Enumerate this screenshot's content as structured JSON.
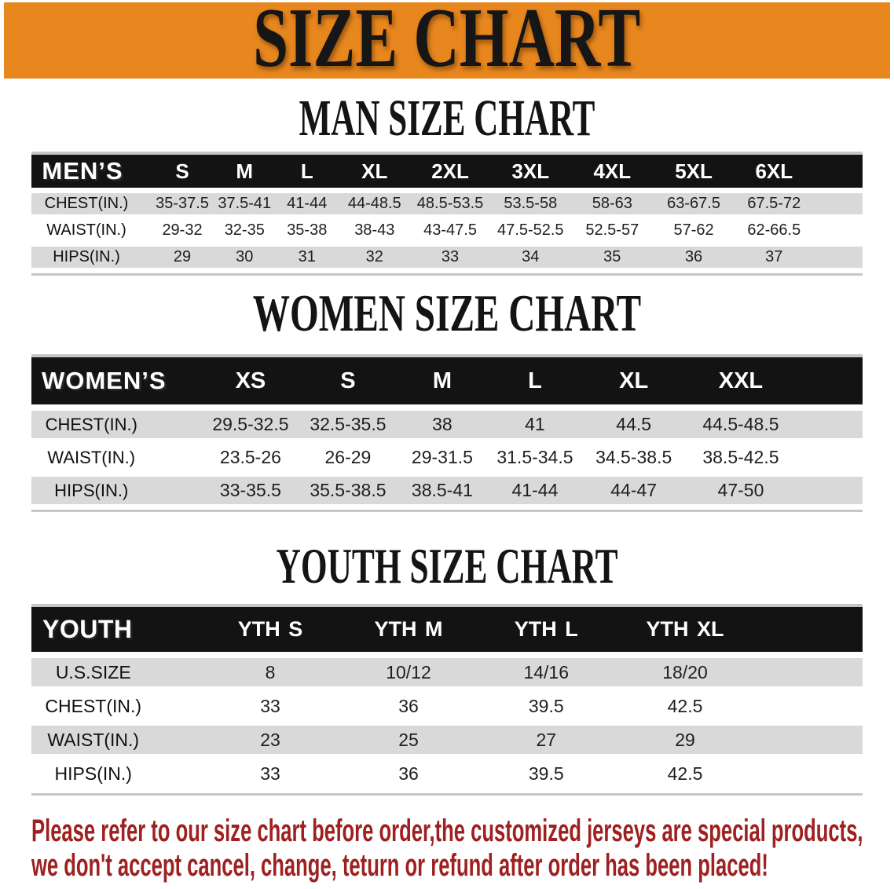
{
  "banner": {
    "title": "SIZE CHART",
    "bg_color": "#E8871E"
  },
  "sections": [
    {
      "id": "men",
      "heading": "MAN SIZE CHART",
      "table": {
        "header": [
          "MEN’S",
          "S",
          "M",
          "L",
          "XL",
          "2XL",
          "3XL",
          "4XL",
          "5XL",
          "6XL"
        ],
        "rows": [
          {
            "label": "CHEST(IN.)",
            "values": [
              "35-37.5",
              "37.5-41",
              "41-44",
              "44-48.5",
              "48.5-53.5",
              "53.5-58",
              "58-63",
              "63-67.5",
              "67.5-72"
            ]
          },
          {
            "label": "WAIST(IN.)",
            "values": [
              "29-32",
              "32-35",
              "35-38",
              "38-43",
              "43-47.5",
              "47.5-52.5",
              "52.5-57",
              "57-62",
              "62-66.5"
            ]
          },
          {
            "label": "HIPS(IN.)",
            "values": [
              "29",
              "30",
              "31",
              "32",
              "33",
              "34",
              "35",
              "36",
              "37"
            ]
          }
        ]
      }
    },
    {
      "id": "women",
      "heading": "WOMEN SIZE CHART",
      "table": {
        "header": [
          "WOMEN’S",
          "XS",
          "S",
          "M",
          "L",
          "XL",
          "XXL"
        ],
        "rows": [
          {
            "label": "CHEST(IN.)",
            "values": [
              "29.5-32.5",
              "32.5-35.5",
              "38",
              "41",
              "44.5",
              "44.5-48.5"
            ]
          },
          {
            "label": "WAIST(IN.)",
            "values": [
              "23.5-26",
              "26-29",
              "29-31.5",
              "31.5-34.5",
              "34.5-38.5",
              "38.5-42.5"
            ]
          },
          {
            "label": "HIPS(IN.)",
            "values": [
              "33-35.5",
              "35.5-38.5",
              "38.5-41",
              "41-44",
              "44-47",
              "47-50"
            ]
          }
        ]
      }
    },
    {
      "id": "youth",
      "heading": "YOUTH SIZE CHART",
      "table": {
        "header": [
          "YOUTH",
          "YTH S",
          "YTH M",
          "YTH L",
          "YTH XL"
        ],
        "rows": [
          {
            "label": "U.S.SIZE",
            "values": [
              "8",
              "10/12",
              "14/16",
              "18/20"
            ]
          },
          {
            "label": "CHEST(IN.)",
            "values": [
              "33",
              "36",
              "39.5",
              "42.5"
            ]
          },
          {
            "label": "WAIST(IN.)",
            "values": [
              "23",
              "25",
              "27",
              "29"
            ]
          },
          {
            "label": "HIPS(IN.)",
            "values": [
              "33",
              "36",
              "39.5",
              "42.5"
            ]
          }
        ]
      }
    }
  ],
  "disclaimer": {
    "line1": "Please refer to our size chart before order,the customized jerseys are special products,",
    "line2": "we don't accept cancel, change, teturn or refund after order has been placed!",
    "color": "#9E2020"
  },
  "colors": {
    "banner_bg": "#E8871E",
    "table_header_bg": "#131313",
    "row_gray": "#D9D9D9"
  }
}
